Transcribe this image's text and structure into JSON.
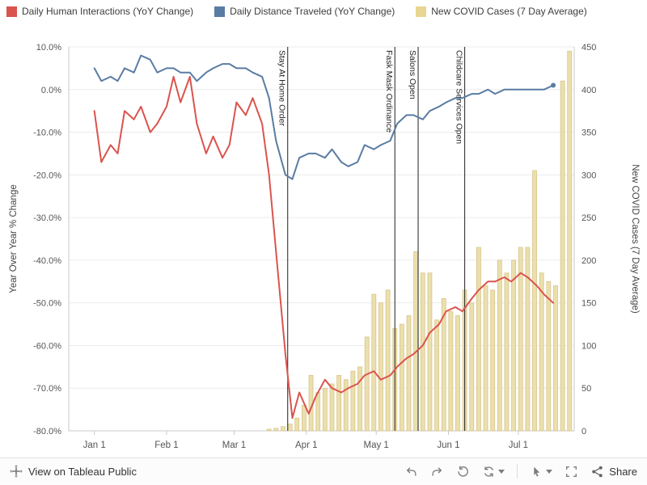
{
  "legend": {
    "items": [
      {
        "label": "Daily Human Interactions (YoY Change)",
        "color": "#da544e"
      },
      {
        "label": "Daily Distance Traveled (YoY Change)",
        "color": "#597ca3"
      },
      {
        "label": "New COVID Cases (7 Day Average)",
        "color": "#e9d592"
      }
    ]
  },
  "chart_data": {
    "type": "mixed",
    "title": "",
    "left_axis": {
      "label": "Year Over Year % Change",
      "min": -80,
      "max": 10,
      "tick_step": 10,
      "format": "percent"
    },
    "right_axis": {
      "label": "New COVID Cases (7 Day Average)",
      "min": 0,
      "max": 450,
      "tick_step": 50
    },
    "x_axis": {
      "domain_days": [
        -11,
        206
      ],
      "ticks": [
        {
          "day": 0,
          "label": "Jan 1"
        },
        {
          "day": 31,
          "label": "Feb 1"
        },
        {
          "day": 60,
          "label": "Mar 1"
        },
        {
          "day": 91,
          "label": "Apr 1"
        },
        {
          "day": 121,
          "label": "May 1"
        },
        {
          "day": 152,
          "label": "Jun 1"
        },
        {
          "day": 182,
          "label": "Jul 1"
        }
      ]
    },
    "events": [
      {
        "day": 83,
        "label": "Stay At Home Order"
      },
      {
        "day": 129,
        "label": "Fask Mask Ordinance"
      },
      {
        "day": 139,
        "label": "Salons Open"
      },
      {
        "day": 159,
        "label": "Childcare Services Open"
      }
    ],
    "series": [
      {
        "id": "covid_cases",
        "type": "bar",
        "axis": "right",
        "name": "New COVID Cases (7 Day Average)",
        "color": "#ebdfac",
        "border_color": "#d8c58c",
        "points": [
          [
            75,
            2
          ],
          [
            78,
            3
          ],
          [
            81,
            5
          ],
          [
            84,
            8
          ],
          [
            87,
            15
          ],
          [
            90,
            30
          ],
          [
            93,
            65
          ],
          [
            96,
            45
          ],
          [
            99,
            50
          ],
          [
            102,
            55
          ],
          [
            105,
            65
          ],
          [
            108,
            60
          ],
          [
            111,
            70
          ],
          [
            114,
            75
          ],
          [
            117,
            110
          ],
          [
            120,
            160
          ],
          [
            123,
            150
          ],
          [
            126,
            165
          ],
          [
            129,
            120
          ],
          [
            132,
            125
          ],
          [
            135,
            135
          ],
          [
            138,
            210
          ],
          [
            141,
            185
          ],
          [
            144,
            185
          ],
          [
            147,
            130
          ],
          [
            150,
            155
          ],
          [
            153,
            140
          ],
          [
            156,
            135
          ],
          [
            159,
            165
          ],
          [
            162,
            150
          ],
          [
            165,
            215
          ],
          [
            168,
            170
          ],
          [
            171,
            165
          ],
          [
            174,
            200
          ],
          [
            177,
            185
          ],
          [
            180,
            200
          ],
          [
            183,
            215
          ],
          [
            186,
            215
          ],
          [
            189,
            305
          ],
          [
            192,
            185
          ],
          [
            195,
            175
          ],
          [
            198,
            170
          ],
          [
            201,
            410
          ],
          [
            204,
            445
          ]
        ]
      },
      {
        "id": "distance_traveled",
        "type": "line",
        "axis": "left",
        "name": "Daily Distance Traveled (YoY Change)",
        "color": "#597ca3",
        "end_marker": true,
        "points": [
          [
            0,
            5
          ],
          [
            3,
            2
          ],
          [
            7,
            3
          ],
          [
            10,
            2
          ],
          [
            13,
            5
          ],
          [
            17,
            4
          ],
          [
            20,
            8
          ],
          [
            24,
            7
          ],
          [
            27,
            4
          ],
          [
            31,
            5
          ],
          [
            34,
            5
          ],
          [
            37,
            4
          ],
          [
            41,
            4
          ],
          [
            44,
            2
          ],
          [
            48,
            4
          ],
          [
            51,
            5
          ],
          [
            55,
            6
          ],
          [
            58,
            6
          ],
          [
            61,
            5
          ],
          [
            65,
            5
          ],
          [
            68,
            4
          ],
          [
            72,
            3
          ],
          [
            75,
            -2
          ],
          [
            78,
            -12
          ],
          [
            82,
            -20
          ],
          [
            85,
            -21
          ],
          [
            88,
            -16
          ],
          [
            92,
            -15
          ],
          [
            95,
            -15
          ],
          [
            99,
            -16
          ],
          [
            102,
            -14
          ],
          [
            106,
            -17
          ],
          [
            109,
            -18
          ],
          [
            113,
            -17
          ],
          [
            116,
            -13
          ],
          [
            120,
            -14
          ],
          [
            123,
            -13
          ],
          [
            127,
            -12
          ],
          [
            130,
            -8
          ],
          [
            134,
            -6
          ],
          [
            137,
            -6
          ],
          [
            141,
            -7
          ],
          [
            144,
            -5
          ],
          [
            148,
            -4
          ],
          [
            151,
            -3
          ],
          [
            155,
            -2
          ],
          [
            158,
            -2
          ],
          [
            162,
            -1
          ],
          [
            165,
            -1
          ],
          [
            169,
            0
          ],
          [
            172,
            -1
          ],
          [
            176,
            0
          ],
          [
            179,
            0
          ],
          [
            183,
            0
          ],
          [
            186,
            0
          ],
          [
            190,
            0
          ],
          [
            193,
            0
          ],
          [
            197,
            1
          ]
        ]
      },
      {
        "id": "human_interactions",
        "type": "line",
        "axis": "left",
        "name": "Daily Human Interactions (YoY Change)",
        "color": "#da544e",
        "end_marker": false,
        "points": [
          [
            0,
            -5
          ],
          [
            3,
            -17
          ],
          [
            7,
            -13
          ],
          [
            10,
            -15
          ],
          [
            13,
            -5
          ],
          [
            17,
            -7
          ],
          [
            20,
            -4
          ],
          [
            24,
            -10
          ],
          [
            27,
            -8
          ],
          [
            31,
            -4
          ],
          [
            34,
            3
          ],
          [
            37,
            -3
          ],
          [
            41,
            3
          ],
          [
            44,
            -8
          ],
          [
            48,
            -15
          ],
          [
            51,
            -11
          ],
          [
            55,
            -16
          ],
          [
            58,
            -13
          ],
          [
            61,
            -3
          ],
          [
            65,
            -6
          ],
          [
            68,
            -2
          ],
          [
            72,
            -8
          ],
          [
            75,
            -20
          ],
          [
            78,
            -38
          ],
          [
            82,
            -62
          ],
          [
            85,
            -77
          ],
          [
            88,
            -71
          ],
          [
            92,
            -76
          ],
          [
            95,
            -72
          ],
          [
            99,
            -68
          ],
          [
            102,
            -70
          ],
          [
            106,
            -71
          ],
          [
            109,
            -70
          ],
          [
            113,
            -69
          ],
          [
            116,
            -67
          ],
          [
            120,
            -66
          ],
          [
            123,
            -68
          ],
          [
            127,
            -67
          ],
          [
            130,
            -65
          ],
          [
            134,
            -63
          ],
          [
            137,
            -62
          ],
          [
            141,
            -60
          ],
          [
            144,
            -57
          ],
          [
            148,
            -55
          ],
          [
            151,
            -52
          ],
          [
            155,
            -51
          ],
          [
            158,
            -52
          ],
          [
            162,
            -49
          ],
          [
            165,
            -47
          ],
          [
            169,
            -45
          ],
          [
            172,
            -45
          ],
          [
            176,
            -44
          ],
          [
            179,
            -45
          ],
          [
            183,
            -43
          ],
          [
            186,
            -44
          ],
          [
            190,
            -46
          ],
          [
            193,
            -48
          ],
          [
            197,
            -50
          ]
        ]
      }
    ],
    "grid_color": "#ebebeb",
    "axis_line_color": "#c9c9c9",
    "event_line_color": "#1f1f1f",
    "event_label_color": "#222222",
    "tick_text_color": "#555555",
    "axis_title_color": "#444444",
    "legend_position": "top"
  },
  "toolbar": {
    "attribution": "View on Tableau Public",
    "share_label": "Share",
    "icons": [
      "tableau-logo",
      "undo",
      "redo",
      "revert",
      "refresh",
      "pointer-mode",
      "fullscreen",
      "share"
    ]
  }
}
